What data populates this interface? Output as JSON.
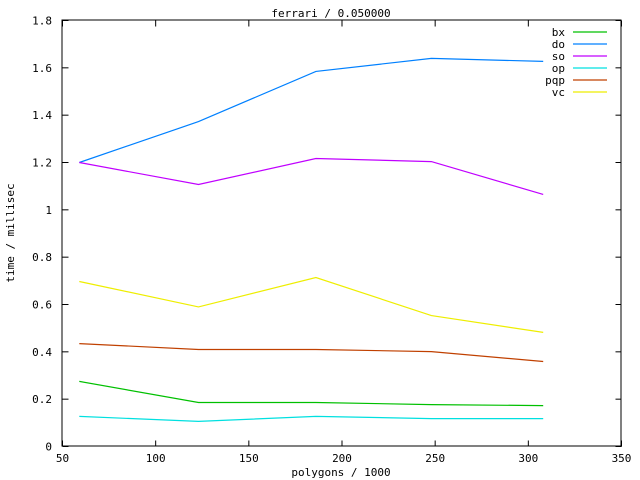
{
  "chart_data": {
    "type": "line",
    "title": "ferrari / 0.050000",
    "xlabel": "polygons / 1000",
    "ylabel": "time / millisec",
    "xlim": [
      50,
      350
    ],
    "ylim": [
      0,
      1.8
    ],
    "xticks": [
      50,
      100,
      150,
      200,
      250,
      300,
      350
    ],
    "yticks": [
      0,
      0.2,
      0.4,
      0.6,
      0.8,
      1,
      1.2,
      1.4,
      1.6,
      1.8
    ],
    "grid": false,
    "legend_position": "top-right",
    "x": [
      59,
      123,
      186,
      248,
      308
    ],
    "series": [
      {
        "name": "bx",
        "color": "#00c000",
        "values": [
          0.275,
          0.186,
          0.186,
          0.177,
          0.173
        ]
      },
      {
        "name": "do",
        "color": "#0080ff",
        "values": [
          1.2,
          1.373,
          1.585,
          1.64,
          1.627
        ]
      },
      {
        "name": "so",
        "color": "#c000ff",
        "values": [
          1.2,
          1.107,
          1.217,
          1.204,
          1.065
        ]
      },
      {
        "name": "op",
        "color": "#00e0e0",
        "values": [
          0.127,
          0.106,
          0.127,
          0.118,
          0.118
        ]
      },
      {
        "name": "pqp",
        "color": "#c04000",
        "values": [
          0.435,
          0.41,
          0.41,
          0.401,
          0.359
        ]
      },
      {
        "name": "vc",
        "color": "#eeee00",
        "values": [
          0.697,
          0.59,
          0.714,
          0.553,
          0.482
        ]
      }
    ]
  }
}
